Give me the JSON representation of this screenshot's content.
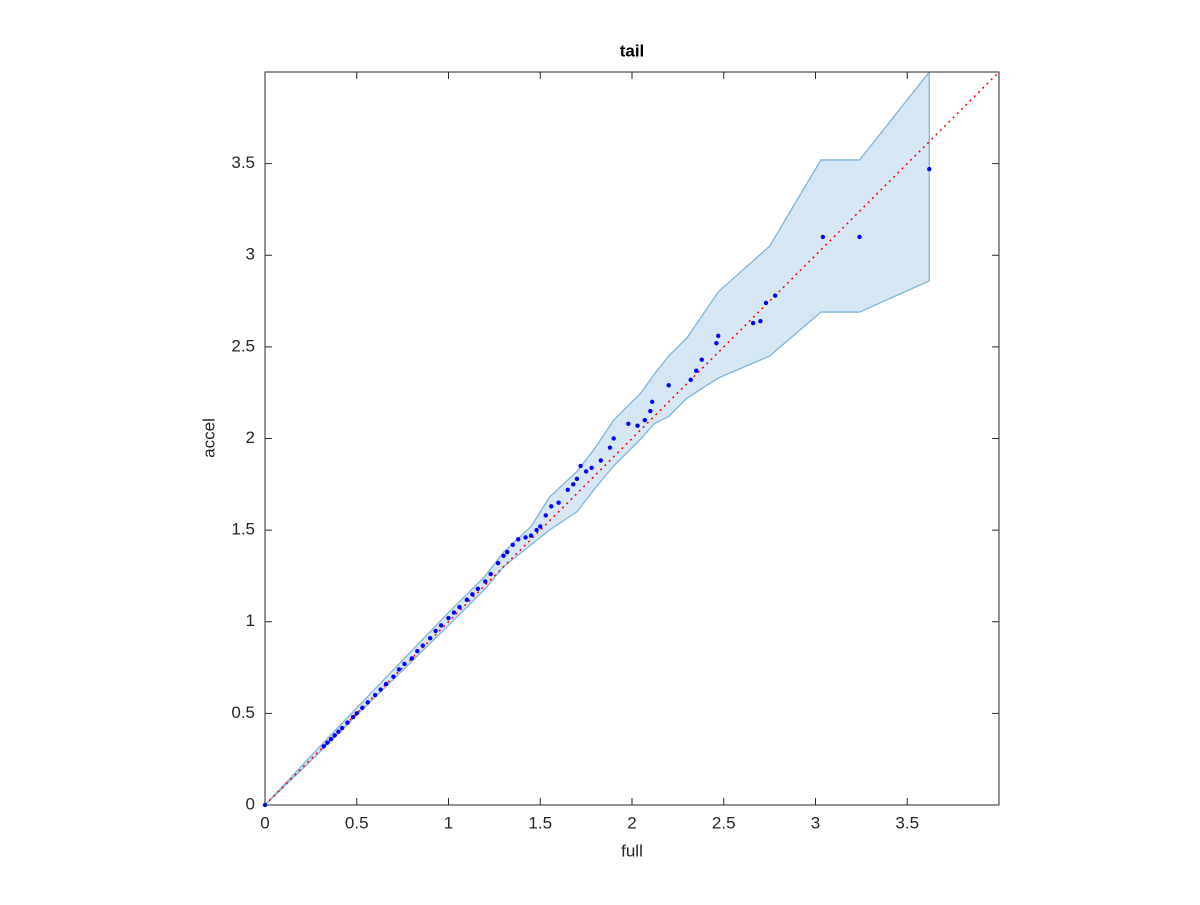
{
  "chart_data": {
    "type": "scatter",
    "title": "tail",
    "x_label": "full",
    "y_label": "accel",
    "xlim": [
      0,
      4
    ],
    "ylim": [
      0,
      4
    ],
    "xticks": [
      0,
      0.5,
      1,
      1.5,
      2,
      2.5,
      3,
      3.5
    ],
    "yticks": [
      0,
      0.5,
      1,
      1.5,
      2,
      2.5,
      3,
      3.5
    ],
    "point_color": "#0000ff",
    "reference_line_color": "#ff0000",
    "band": {
      "fill": "#d7e6f3",
      "stroke": "#80b6da",
      "x": [
        0,
        0.3,
        0.5,
        1.0,
        1.2,
        1.3,
        1.45,
        1.55,
        1.7,
        1.8,
        1.9,
        2.05,
        2.12,
        2.2,
        2.3,
        2.47,
        2.75,
        3.03,
        3.24,
        3.62
      ],
      "upper": [
        0,
        0.32,
        0.53,
        1.05,
        1.25,
        1.38,
        1.52,
        1.68,
        1.82,
        1.95,
        2.1,
        2.25,
        2.35,
        2.45,
        2.55,
        2.8,
        3.05,
        3.52,
        3.52,
        4.0
      ],
      "lower": [
        0,
        0.29,
        0.49,
        0.98,
        1.18,
        1.3,
        1.42,
        1.5,
        1.6,
        1.73,
        1.85,
        2.0,
        2.08,
        2.12,
        2.22,
        2.33,
        2.45,
        2.69,
        2.69,
        2.86
      ]
    },
    "x": [
      0,
      0.32,
      0.34,
      0.36,
      0.38,
      0.4,
      0.42,
      0.45,
      0.48,
      0.5,
      0.53,
      0.56,
      0.6,
      0.63,
      0.66,
      0.7,
      0.73,
      0.76,
      0.8,
      0.83,
      0.86,
      0.9,
      0.93,
      0.96,
      1.0,
      1.03,
      1.06,
      1.1,
      1.13,
      1.16,
      1.2,
      1.23,
      1.27,
      1.3,
      1.32,
      1.35,
      1.38,
      1.42,
      1.45,
      1.48,
      1.5,
      1.53,
      1.56,
      1.6,
      1.65,
      1.68,
      1.7,
      1.72,
      1.75,
      1.78,
      1.83,
      1.88,
      1.9,
      1.98,
      2.03,
      2.07,
      2.1,
      2.11,
      2.2,
      2.32,
      2.35,
      2.38,
      2.46,
      2.47,
      2.66,
      2.7,
      2.73,
      2.78,
      3.04,
      3.24,
      3.62
    ],
    "values": [
      0,
      0.32,
      0.34,
      0.36,
      0.38,
      0.4,
      0.42,
      0.45,
      0.48,
      0.5,
      0.53,
      0.56,
      0.6,
      0.63,
      0.66,
      0.7,
      0.74,
      0.77,
      0.8,
      0.84,
      0.87,
      0.91,
      0.95,
      0.98,
      1.02,
      1.05,
      1.08,
      1.12,
      1.15,
      1.18,
      1.22,
      1.26,
      1.32,
      1.36,
      1.38,
      1.42,
      1.45,
      1.46,
      1.47,
      1.5,
      1.52,
      1.58,
      1.63,
      1.65,
      1.72,
      1.75,
      1.78,
      1.85,
      1.82,
      1.84,
      1.88,
      1.95,
      2.0,
      2.08,
      2.07,
      2.1,
      2.15,
      2.2,
      2.29,
      2.32,
      2.37,
      2.43,
      2.52,
      2.56,
      2.63,
      2.64,
      2.74,
      2.78,
      3.1,
      3.1,
      3.47
    ]
  }
}
